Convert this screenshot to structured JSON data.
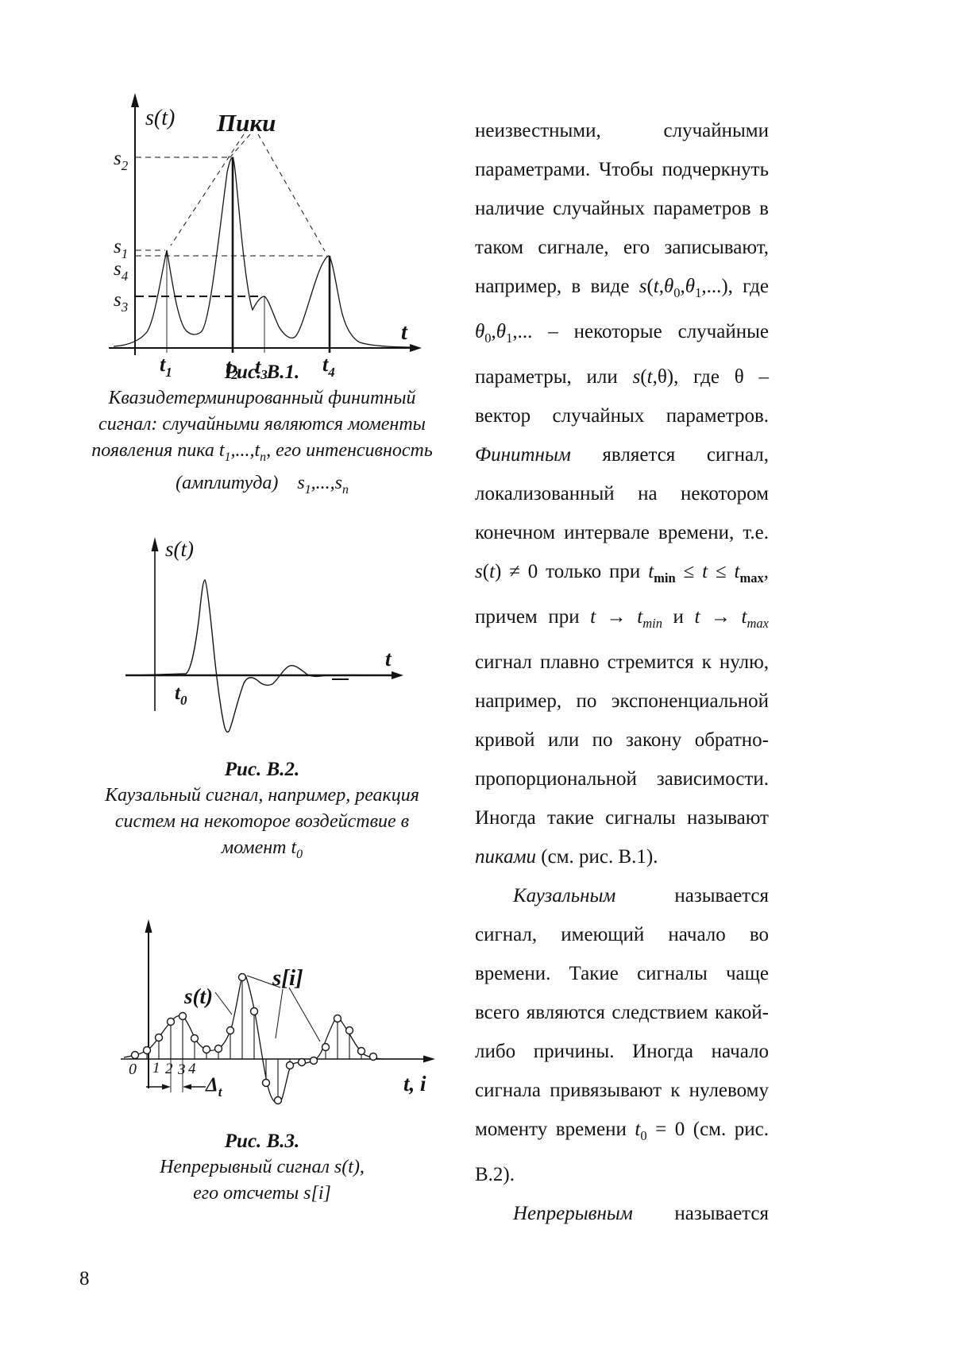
{
  "page_number": "8",
  "right_column": {
    "paragraphs": [
      {
        "html": "неизвестными, случайными параметрами. Чтобы подчеркнуть наличие случайных параметров в таком сигнале, его записывают, например, в виде <i>s</i>(<i>t</i>,<i>θ</i><sub>0</sub>,<i>θ</i><sub>1</sub>,...), где <i>θ</i><sub>0</sub>,<i>θ</i><sub>1</sub>,... – некоторые случайные параметры, или <i>s</i>(<i>t</i>,θ), где θ – вектор случайных параметров. <i>Финитным</i> является сигнал, локализованный на некотором конечном интервале времени, т.е. <i>s</i>(<i>t</i>) ≠ 0 только при <i>t</i><sub><b>min</b></sub> ≤ <i>t</i> ≤ <i>t</i><sub><b>max</b></sub>, причем при <i>t</i> → <i>t</i><sub><i>min</i></sub> и <i>t</i> → <i>t</i><sub><i>max</i></sub> сигнал плавно стремится к нулю, например, по экспоненциальной кривой или по закону обратно-пропорциональной зависимости. Иногда такие сигналы называют <i>пиками</i> (см. рис. В.1)."
      },
      {
        "html": "<i>Каузальным</i> называется сигнал, имеющий начало во времени. Такие сигналы чаще всего являются следствием какой-либо причины. Иногда начало сигнала привязывают к нулевому моменту времени <i>t</i><sub>0</sub> = 0 (см. рис. В.2)."
      },
      {
        "html": "<i>Непрерывным</i> называется"
      }
    ]
  },
  "fig1": {
    "y_axis_label": "s(t)",
    "peaks_title": "Пики",
    "x_axis_label": "t",
    "level_s2": {
      "base": "s",
      "sub": "2"
    },
    "level_s1": {
      "base": "s",
      "sub": "1"
    },
    "level_s4": {
      "base": "s",
      "sub": "4"
    },
    "level_s3": {
      "base": "s",
      "sub": "3"
    },
    "tick_t1": {
      "base": "t",
      "sub": "1"
    },
    "tick_t2": {
      "base": "t",
      "sub": "2"
    },
    "tick_t3": {
      "base": "t",
      "sub": "3"
    },
    "tick_t4": {
      "base": "t",
      "sub": "4"
    },
    "caption_title": "Рис. В.1.",
    "caption_html": "Квазидетерминированный финитный<br>сигнал: случайными являются моменты<br>появления пика <i>t</i><sub>1</sub>,...,<i>t</i><sub>n</sub>, его интенсивность<br>(амплитуда)&nbsp;&nbsp;&nbsp;&nbsp;<i>s</i><sub>1</sub>,...,<i>s</i><sub>n</sub>"
  },
  "fig2": {
    "y_axis_label": "s(t)",
    "x_axis_label": "t",
    "t0_label": {
      "base": "t",
      "sub": "0"
    },
    "caption_title": "Рис. В.2.",
    "caption_html": "Каузальный сигнал, например, реакция<br>систем на некоторое воздействие в<br>момент <i>t</i><sub>0</sub>"
  },
  "fig3": {
    "curve_label": "s(t)",
    "samples_label": "s[i]",
    "x_axis_label": "t, i",
    "origin_label": "0",
    "ticks": [
      "1",
      "2",
      "3",
      "4"
    ],
    "delta_label": {
      "base": "Δ",
      "sub": "t"
    },
    "caption_title": "Рис. В.3.",
    "caption_html": "Непрерывный сигнал <i>s</i>(<i>t</i>),<br>его отсчеты <i>s</i>[<i>i</i>]"
  }
}
